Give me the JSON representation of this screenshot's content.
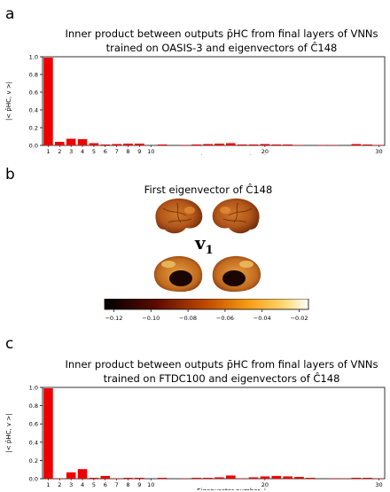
{
  "panels": {
    "a": {
      "letter": "a",
      "title_line1": "Inner product between outputs p̄HC from final layers of VNNs",
      "title_line2": "trained on OASIS-3 and eigenvectors of Ĉ148"
    },
    "b": {
      "letter": "b",
      "title": "First eigenvector of Ĉ148",
      "vector_label": "v1",
      "colorbar": {
        "ticks": [
          "−0.12",
          "−0.10",
          "−0.08",
          "−0.06",
          "−0.04",
          "−0.02"
        ],
        "range": [
          -0.125,
          -0.015
        ]
      }
    },
    "c": {
      "letter": "c",
      "title_line1": "Inner product between outputs p̄HC from final layers of VNNs",
      "title_line2": "trained on FTDC100 and eigenvectors of Ĉ148"
    }
  },
  "chart_data": [
    {
      "type": "bar",
      "ylabel": "|< p̄HC, v >|",
      "xlabel": "Eigenvector number, i",
      "ylim": [
        0,
        1.0
      ],
      "yticks": [
        "0.0",
        "0.2",
        "0.4",
        "0.6",
        "0.8",
        "1.0"
      ],
      "xticks": [
        "1",
        "2",
        "3",
        "4",
        "5",
        "6",
        "7",
        "8",
        "9",
        "10",
        "20",
        "30"
      ],
      "color": "#ee0000",
      "x": [
        1,
        2,
        3,
        4,
        5,
        6,
        7,
        8,
        9,
        10,
        11,
        12,
        13,
        14,
        15,
        16,
        17,
        18,
        19,
        20,
        21,
        22,
        23,
        24,
        25,
        26,
        27,
        28,
        29,
        30
      ],
      "values": [
        0.99,
        0.04,
        0.075,
        0.07,
        0.025,
        0.01,
        0.015,
        0.02,
        0.02,
        0.0,
        0.01,
        0.0,
        0.005,
        0.01,
        0.015,
        0.02,
        0.025,
        0.01,
        0.01,
        0.015,
        0.01,
        0.01,
        0.005,
        0.0,
        0.005,
        0.005,
        0.0,
        0.015,
        0.01,
        0.005
      ]
    },
    {
      "type": "bar",
      "ylabel": "|< p̄HC, v >|",
      "xlabel": "Eigenvector number, i",
      "ylim": [
        0,
        1.0
      ],
      "yticks": [
        "0.0",
        "0.2",
        "0.4",
        "0.6",
        "0.8",
        "1.0"
      ],
      "xticks": [
        "1",
        "2",
        "3",
        "4",
        "5",
        "6",
        "7",
        "8",
        "9",
        "10",
        "20",
        "30"
      ],
      "color": "#ee0000",
      "x": [
        1,
        2,
        3,
        4,
        5,
        6,
        7,
        8,
        9,
        10,
        11,
        12,
        13,
        14,
        15,
        16,
        17,
        18,
        19,
        20,
        21,
        22,
        23,
        24,
        25,
        26,
        27,
        28,
        29,
        30
      ],
      "values": [
        0.99,
        0.005,
        0.07,
        0.105,
        0.01,
        0.03,
        0.005,
        0.01,
        0.01,
        0.0,
        0.01,
        0.0,
        0.005,
        0.01,
        0.01,
        0.015,
        0.035,
        0.005,
        0.015,
        0.025,
        0.03,
        0.025,
        0.02,
        0.01,
        0.0,
        0.005,
        0.005,
        0.01,
        0.01,
        0.005
      ]
    }
  ]
}
